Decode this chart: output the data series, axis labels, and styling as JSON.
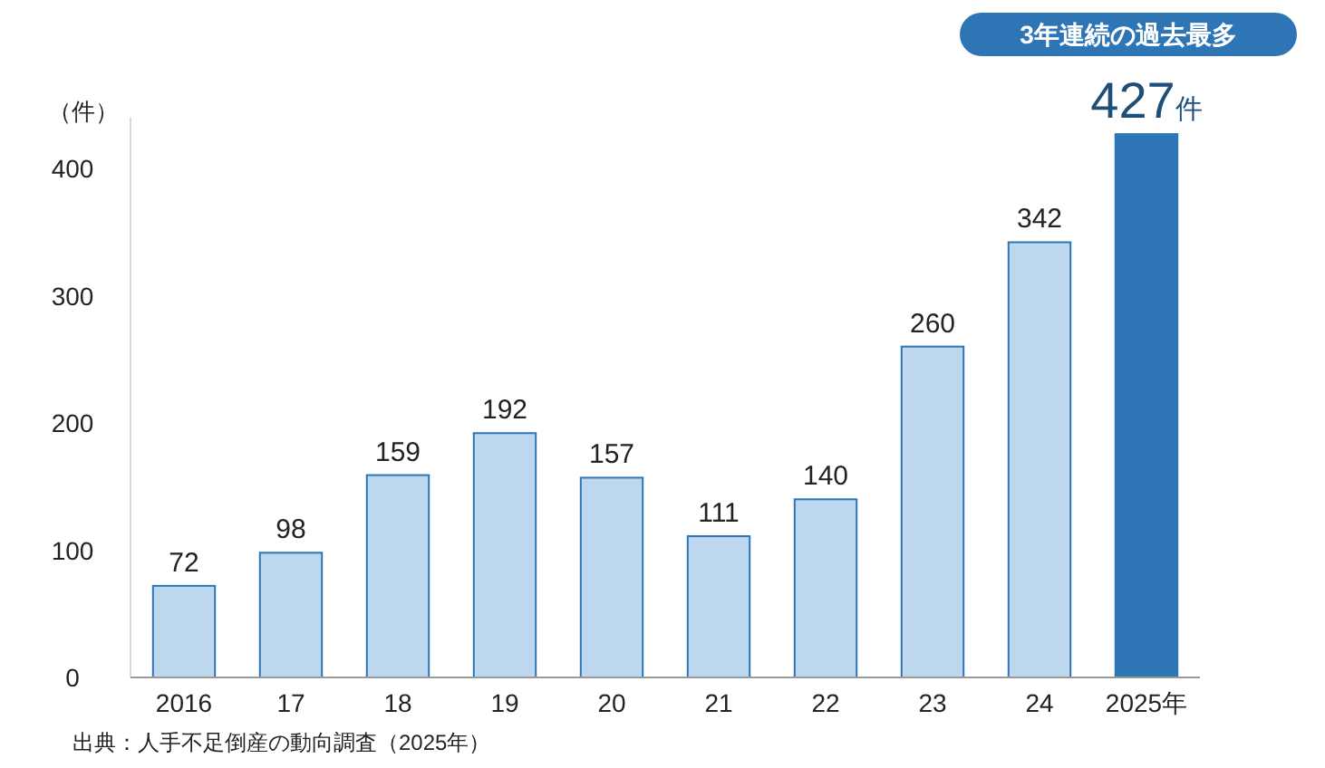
{
  "chart_data": {
    "type": "bar",
    "ylabel": "（件）",
    "categories": [
      "2016",
      "17",
      "18",
      "19",
      "20",
      "21",
      "22",
      "23",
      "24",
      "2025年"
    ],
    "values": [
      72,
      98,
      159,
      192,
      157,
      111,
      140,
      260,
      342,
      427
    ],
    "colors": [
      "#bdd7ee",
      "#bdd7ee",
      "#bdd7ee",
      "#bdd7ee",
      "#bdd7ee",
      "#bdd7ee",
      "#bdd7ee",
      "#bdd7ee",
      "#bdd7ee",
      "#2e75b6"
    ],
    "value_labels": [
      "72",
      "98",
      "159",
      "192",
      "157",
      "111",
      "140",
      "260",
      "342",
      "427件"
    ],
    "ylim": [
      0,
      440
    ],
    "yticks": [
      0,
      100,
      200,
      300,
      400
    ],
    "grid": false,
    "annotations": [
      "3年連続の過去最多",
      "出典：人手不足倒産の動向調査（2025年）"
    ]
  }
}
